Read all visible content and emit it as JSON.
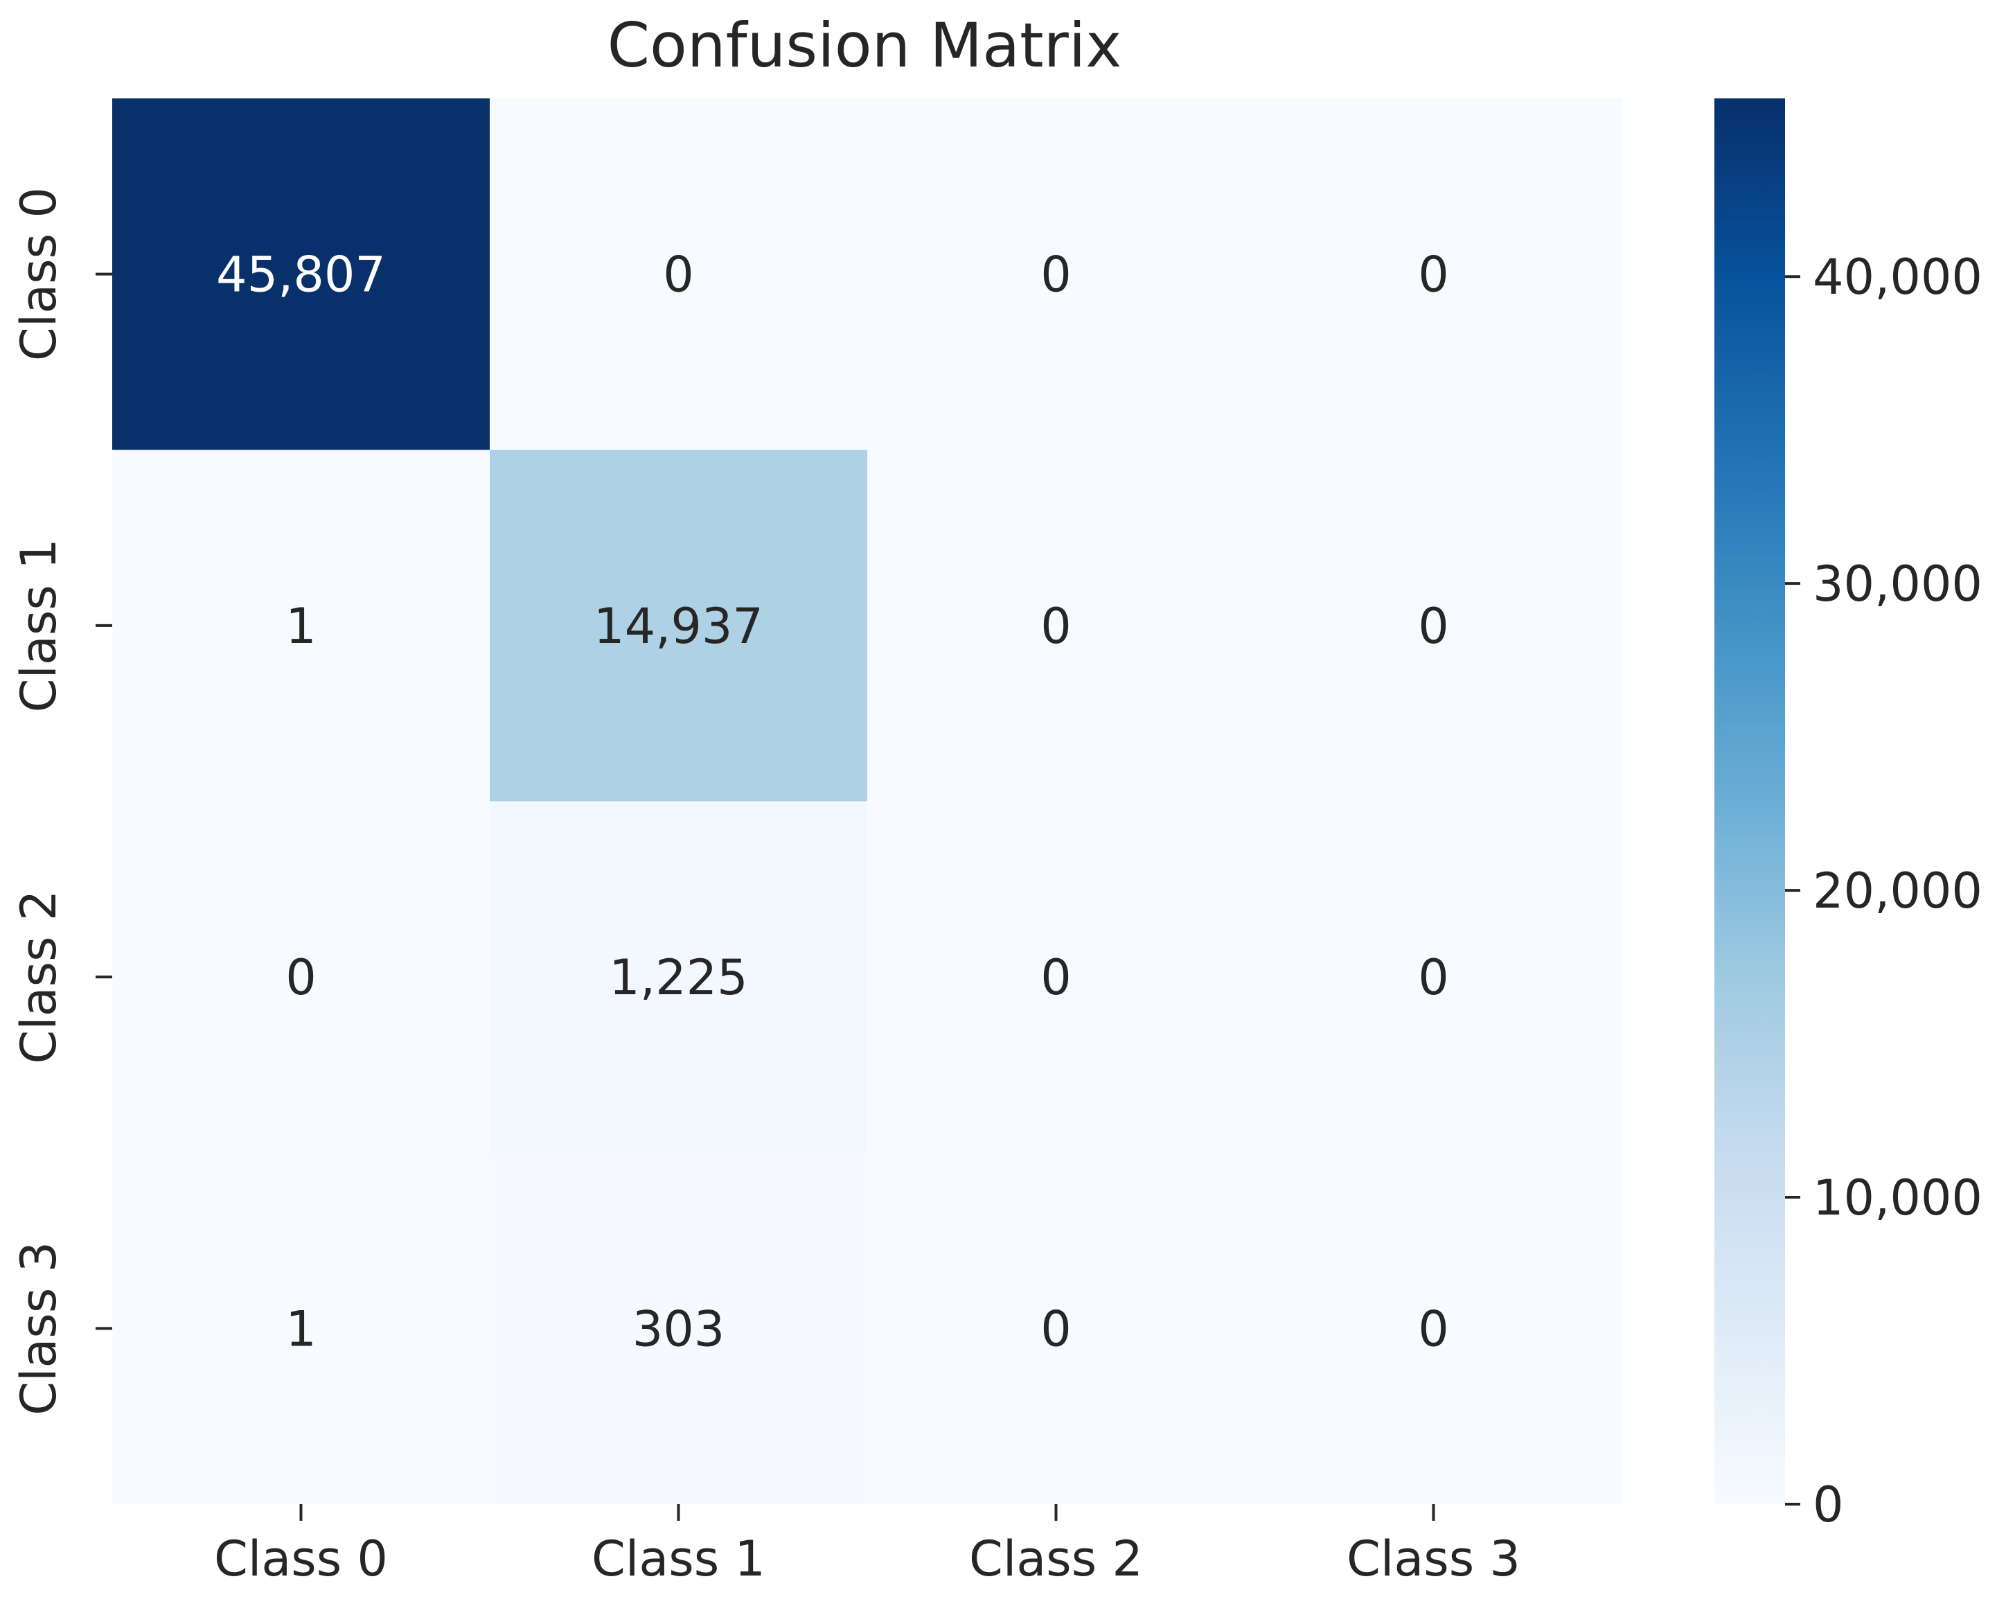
{
  "chart_data": {
    "type": "heatmap",
    "title": "Confusion Matrix",
    "xlabel": "",
    "ylabel": "",
    "x_categories": [
      "Class 0",
      "Class 1",
      "Class 2",
      "Class 3"
    ],
    "y_categories": [
      "Class 0",
      "Class 1",
      "Class 2",
      "Class 3"
    ],
    "values": [
      [
        45807,
        0,
        0,
        0
      ],
      [
        1,
        14937,
        0,
        0
      ],
      [
        0,
        1225,
        0,
        0
      ],
      [
        1,
        303,
        0,
        0
      ]
    ],
    "cell_labels": [
      [
        "45,807",
        "0",
        "0",
        "0"
      ],
      [
        "1",
        "14,937",
        "0",
        "0"
      ],
      [
        "0",
        "1,225",
        "0",
        "0"
      ],
      [
        "1",
        "303",
        "0",
        "0"
      ]
    ],
    "colormap": "Blues",
    "color_low": "#f7fbff",
    "color_high": "#08306b",
    "vmin": 0,
    "vmax": 45807,
    "colorbar": {
      "ticks": [
        0,
        10000,
        20000,
        30000,
        40000
      ],
      "tick_labels": [
        "0",
        "10,000",
        "20,000",
        "30,000",
        "40,000"
      ],
      "placement": "right"
    },
    "grid": false,
    "legend": "none"
  }
}
